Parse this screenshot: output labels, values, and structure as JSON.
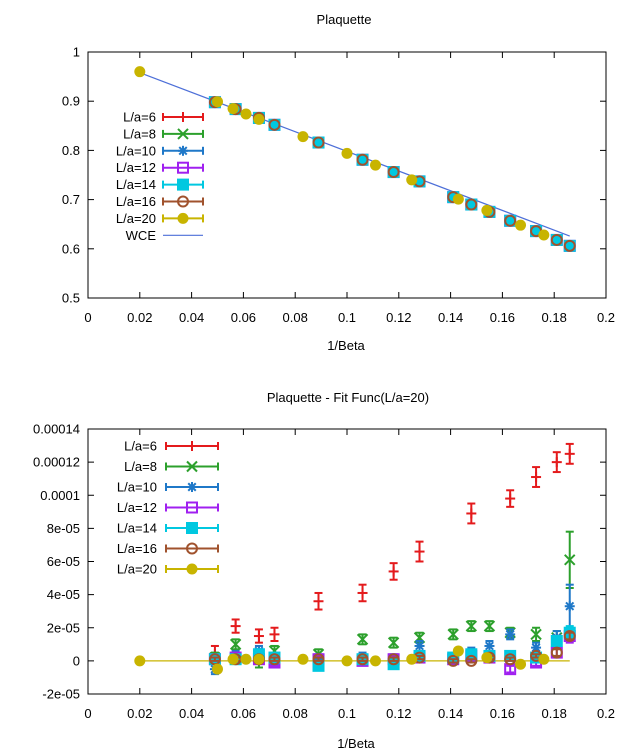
{
  "colors": {
    "L6": "#e41a1c",
    "L8": "#2ca02c",
    "L10": "#1f78c8",
    "L12": "#a020f0",
    "L14": "#00c8e0",
    "L16": "#a0522d",
    "L20": "#c8b400",
    "WCE": "#4d6fd8"
  },
  "chart_data": [
    {
      "type": "scatter",
      "title": "Plaquette",
      "xlabel": "1/Beta",
      "ylabel": "",
      "xlim": [
        0,
        0.2
      ],
      "ylim": [
        0.5,
        1
      ],
      "xticks": [
        "0",
        "0.02",
        "0.04",
        "0.06",
        "0.08",
        "0.1",
        "0.12",
        "0.14",
        "0.16",
        "0.18",
        "0.2"
      ],
      "yticks": [
        "0.5",
        "0.6",
        "0.7",
        "0.8",
        "0.9",
        "1"
      ],
      "legend_position": "left",
      "series": [
        {
          "name": "L/a=6",
          "key": "L6",
          "marker": "plus",
          "x": [
            0.049,
            0.057,
            0.066,
            0.072,
            0.089,
            0.106,
            0.118,
            0.128,
            0.141,
            0.148,
            0.155,
            0.163,
            0.173,
            0.181,
            0.186
          ],
          "y": [
            0.898,
            0.884,
            0.866,
            0.852,
            0.816,
            0.781,
            0.756,
            0.737,
            0.705,
            0.69,
            0.675,
            0.657,
            0.636,
            0.618,
            0.606
          ]
        },
        {
          "name": "L/a=8",
          "key": "L8",
          "marker": "x",
          "x": [
            0.049,
            0.057,
            0.066,
            0.072,
            0.089,
            0.106,
            0.118,
            0.128,
            0.141,
            0.148,
            0.155,
            0.163,
            0.173,
            0.181,
            0.186
          ],
          "y": [
            0.898,
            0.884,
            0.866,
            0.852,
            0.816,
            0.781,
            0.756,
            0.737,
            0.705,
            0.69,
            0.675,
            0.657,
            0.636,
            0.618,
            0.606
          ]
        },
        {
          "name": "L/a=10",
          "key": "L10",
          "marker": "star",
          "x": [
            0.049,
            0.057,
            0.066,
            0.072,
            0.089,
            0.106,
            0.118,
            0.128,
            0.141,
            0.148,
            0.155,
            0.163,
            0.173,
            0.181,
            0.186
          ],
          "y": [
            0.898,
            0.884,
            0.866,
            0.852,
            0.816,
            0.781,
            0.756,
            0.737,
            0.705,
            0.69,
            0.675,
            0.657,
            0.636,
            0.618,
            0.606
          ]
        },
        {
          "name": "L/a=12",
          "key": "L12",
          "marker": "square-open",
          "x": [
            0.049,
            0.057,
            0.066,
            0.072,
            0.089,
            0.106,
            0.118,
            0.128,
            0.141,
            0.148,
            0.155,
            0.163,
            0.173,
            0.181,
            0.186
          ],
          "y": [
            0.898,
            0.884,
            0.866,
            0.852,
            0.816,
            0.781,
            0.756,
            0.737,
            0.705,
            0.69,
            0.675,
            0.657,
            0.636,
            0.618,
            0.606
          ]
        },
        {
          "name": "L/a=14",
          "key": "L14",
          "marker": "square-filled",
          "x": [
            0.049,
            0.057,
            0.066,
            0.072,
            0.089,
            0.106,
            0.118,
            0.128,
            0.141,
            0.148,
            0.155,
            0.163,
            0.173,
            0.181,
            0.186
          ],
          "y": [
            0.898,
            0.884,
            0.866,
            0.852,
            0.816,
            0.781,
            0.756,
            0.737,
            0.705,
            0.69,
            0.675,
            0.657,
            0.636,
            0.618,
            0.606
          ]
        },
        {
          "name": "L/a=16",
          "key": "L16",
          "marker": "circle-open",
          "x": [
            0.049,
            0.057,
            0.066,
            0.072,
            0.089,
            0.106,
            0.118,
            0.128,
            0.141,
            0.148,
            0.155,
            0.163,
            0.173,
            0.181,
            0.186
          ],
          "y": [
            0.898,
            0.884,
            0.866,
            0.852,
            0.816,
            0.781,
            0.756,
            0.737,
            0.705,
            0.69,
            0.675,
            0.657,
            0.636,
            0.618,
            0.606
          ]
        },
        {
          "name": "L/a=20",
          "key": "L20",
          "marker": "circle-filled",
          "x": [
            0.02,
            0.05,
            0.056,
            0.061,
            0.066,
            0.083,
            0.1,
            0.111,
            0.125,
            0.143,
            0.154,
            0.167,
            0.176
          ],
          "y": [
            0.96,
            0.899,
            0.885,
            0.874,
            0.863,
            0.828,
            0.794,
            0.77,
            0.74,
            0.701,
            0.678,
            0.648,
            0.628
          ]
        }
      ],
      "line": {
        "name": "WCE",
        "key": "WCE",
        "x": [
          0.02,
          0.186
        ],
        "y": [
          0.958,
          0.626
        ]
      }
    },
    {
      "type": "scatter",
      "title": "Plaquette - Fit Func(L/a=20)",
      "xlabel": "1/Beta",
      "ylabel": "",
      "xlim": [
        0,
        0.2
      ],
      "ylim": [
        -2e-05,
        0.00014
      ],
      "xticks": [
        "0",
        "0.02",
        "0.04",
        "0.06",
        "0.08",
        "0.1",
        "0.12",
        "0.14",
        "0.16",
        "0.18",
        "0.2"
      ],
      "yticks": [
        "-2e-05",
        "0",
        "2e-05",
        "4e-05",
        "6e-05",
        "8e-05",
        "0.0001",
        "0.00012",
        "0.00014"
      ],
      "legend_position": "top-left",
      "series": [
        {
          "name": "L/a=6",
          "key": "L6",
          "marker": "plus",
          "x": [
            0.049,
            0.057,
            0.066,
            0.072,
            0.089,
            0.106,
            0.118,
            0.128,
            0.148,
            0.163,
            0.173,
            0.181,
            0.186
          ],
          "y": [
            4e-06,
            2.1e-05,
            1.5e-05,
            1.6e-05,
            3.6e-05,
            4.1e-05,
            5.4e-05,
            6.6e-05,
            8.9e-05,
            9.8e-05,
            0.000111,
            0.00012,
            0.000125
          ],
          "err": [
            5e-06,
            4e-06,
            4e-06,
            4e-06,
            5e-06,
            5e-06,
            5e-06,
            6e-06,
            6e-06,
            5e-06,
            6e-06,
            6e-06,
            6e-06
          ]
        },
        {
          "name": "L/a=8",
          "key": "L8",
          "marker": "x",
          "x": [
            0.049,
            0.057,
            0.066,
            0.072,
            0.089,
            0.106,
            0.118,
            0.128,
            0.141,
            0.148,
            0.155,
            0.163,
            0.173,
            0.181,
            0.186
          ],
          "y": [
            2e-06,
            1e-05,
            1e-06,
            6e-06,
            4e-06,
            1.3e-05,
            1.1e-05,
            1.4e-05,
            1.6e-05,
            2.1e-05,
            2.1e-05,
            1.7e-05,
            1.6e-05,
            1.4e-05,
            6.1e-05
          ],
          "err": [
            3e-06,
            3e-06,
            5e-06,
            3e-06,
            3e-06,
            3e-06,
            3e-06,
            3e-06,
            3e-06,
            3e-06,
            3e-06,
            3e-06,
            4e-06,
            4e-06,
            1.7e-05
          ]
        },
        {
          "name": "L/a=10",
          "key": "L10",
          "marker": "star",
          "x": [
            0.049,
            0.057,
            0.066,
            0.072,
            0.089,
            0.106,
            0.118,
            0.128,
            0.141,
            0.148,
            0.155,
            0.163,
            0.173,
            0.181,
            0.186
          ],
          "y": [
            -5e-06,
            3e-06,
            6e-06,
            1e-06,
            1e-06,
            2e-06,
            1e-06,
            9e-06,
            1e-06,
            5e-06,
            9e-06,
            1.6e-05,
            8e-06,
            1.4e-05,
            3.3e-05
          ],
          "err": [
            3e-06,
            3e-06,
            3e-06,
            3e-06,
            3e-06,
            3e-06,
            3e-06,
            3e-06,
            3e-06,
            3e-06,
            3e-06,
            3e-06,
            3e-06,
            4e-06,
            1.3e-05
          ]
        },
        {
          "name": "L/a=12",
          "key": "L12",
          "marker": "square-open",
          "x": [
            0.049,
            0.057,
            0.066,
            0.072,
            0.089,
            0.106,
            0.118,
            0.128,
            0.141,
            0.148,
            0.155,
            0.163,
            0.173,
            0.181,
            0.186
          ],
          "y": [
            1e-06,
            2e-06,
            1e-06,
            -1e-06,
            1e-06,
            0,
            1e-06,
            2e-06,
            1e-06,
            3e-06,
            2e-06,
            -5e-06,
            -1e-06,
            5e-06,
            1.5e-05
          ],
          "err": [
            2e-06,
            2e-06,
            2e-06,
            2e-06,
            2e-06,
            2e-06,
            2e-06,
            2e-06,
            2e-06,
            2e-06,
            2e-06,
            2e-06,
            2e-06,
            3e-06,
            4e-06
          ]
        },
        {
          "name": "L/a=14",
          "key": "L14",
          "marker": "square-filled",
          "x": [
            0.049,
            0.057,
            0.066,
            0.072,
            0.089,
            0.106,
            0.118,
            0.128,
            0.141,
            0.148,
            0.155,
            0.163,
            0.173,
            0.181,
            0.186
          ],
          "y": [
            1e-06,
            1e-06,
            4e-06,
            2e-06,
            -3e-06,
            1e-06,
            -2e-06,
            3e-06,
            2e-06,
            4e-06,
            3e-06,
            3e-06,
            2e-06,
            1.2e-05,
            1.7e-05
          ],
          "err": [
            2e-06,
            2e-06,
            2e-06,
            2e-06,
            2e-06,
            2e-06,
            2e-06,
            2e-06,
            2e-06,
            2e-06,
            2e-06,
            2e-06,
            2e-06,
            3e-06,
            4e-06
          ]
        },
        {
          "name": "L/a=16",
          "key": "L16",
          "marker": "circle-open",
          "x": [
            0.049,
            0.057,
            0.066,
            0.072,
            0.089,
            0.106,
            0.118,
            0.128,
            0.141,
            0.148,
            0.155,
            0.163,
            0.173,
            0.181,
            0.186
          ],
          "y": [
            1e-06,
            1e-06,
            1e-06,
            1e-06,
            1e-06,
            1e-06,
            1e-06,
            2e-06,
            0,
            0,
            2e-06,
            1e-06,
            3e-06,
            5e-06,
            1.5e-05
          ],
          "err": [
            1e-06,
            1e-06,
            1e-06,
            1e-06,
            1e-06,
            1e-06,
            1e-06,
            1e-06,
            1e-06,
            1e-06,
            1e-06,
            1e-06,
            1e-06,
            2e-06,
            2e-06
          ]
        },
        {
          "name": "L/a=20",
          "key": "L20",
          "marker": "circle-filled",
          "x": [
            0.02,
            0.05,
            0.056,
            0.061,
            0.066,
            0.083,
            0.1,
            0.111,
            0.125,
            0.143,
            0.154,
            0.167,
            0.176
          ],
          "y": [
            0,
            -5e-06,
            1e-06,
            1e-06,
            1e-06,
            1e-06,
            0,
            0,
            1e-06,
            6e-06,
            2e-06,
            -2e-06,
            1e-06
          ],
          "err": [
            0,
            1e-06,
            1e-06,
            1e-06,
            1e-06,
            1e-06,
            1e-06,
            1e-06,
            1e-06,
            1e-06,
            1e-06,
            1e-06,
            1e-06
          ]
        }
      ],
      "line": {
        "key": "L20",
        "x": [
          0.02,
          0.186
        ],
        "y": [
          0,
          0
        ]
      }
    }
  ]
}
